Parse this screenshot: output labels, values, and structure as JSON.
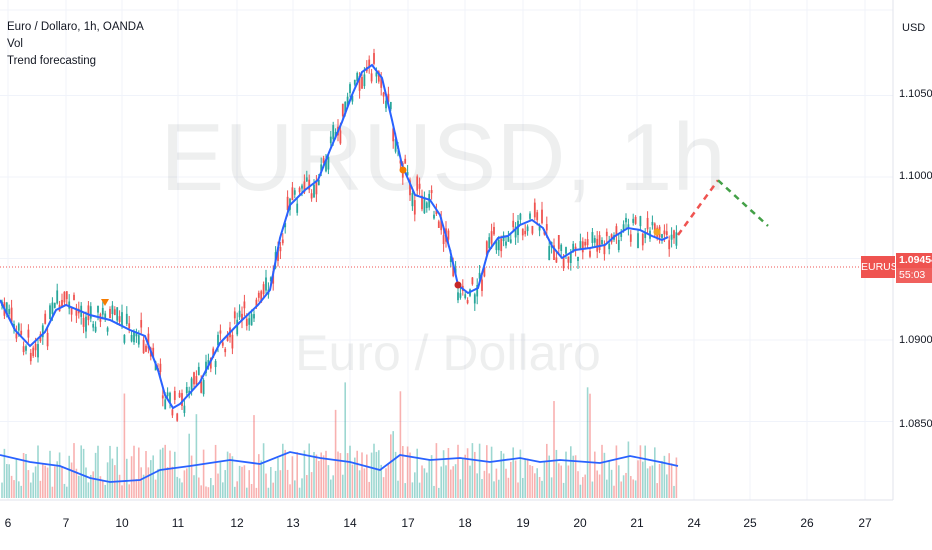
{
  "legend": {
    "title": "Euro / Dollaro, 1h, OANDA",
    "line2": "Vol",
    "line3": "Trend forecasting"
  },
  "watermark": {
    "symbol": "EURUSD, 1h",
    "name": "Euro / Dollaro"
  },
  "price_axis": {
    "currency": "USD",
    "labels": [
      "1.10500",
      "1.10000",
      "1.09000",
      "1.08500"
    ]
  },
  "last_price": {
    "symbol": "EURUSD",
    "price": "1.09454",
    "countdown": "55:03",
    "color": "#ef5350"
  },
  "colors": {
    "up": "#26a69a",
    "down": "#ef5350",
    "ma": "#2962ff",
    "forecast_up": "#ef5350",
    "forecast_down": "#43a047"
  },
  "chart_data": {
    "type": "line",
    "x_ticks": [
      "6",
      "7",
      "10",
      "11",
      "12",
      "13",
      "14",
      "17",
      "18",
      "19",
      "20",
      "21",
      "24",
      "25",
      "26",
      "27"
    ],
    "y_range": [
      1.083,
      1.11
    ],
    "last_price": 1.09454,
    "series": [
      {
        "x": [
          "6",
          "7",
          "10",
          "11",
          "12",
          "13",
          "14",
          "17",
          "18",
          "19",
          "20",
          "21"
        ],
        "values": [
          1.0905,
          1.0915,
          1.091,
          1.086,
          1.0915,
          1.0985,
          1.104,
          1.0985,
          1.092,
          1.0962,
          1.0948,
          1.0958
        ]
      },
      {
        "x": [
          "21",
          "24",
          "25"
        ],
        "values": [
          1.0962,
          1.0998,
          1.097
        ]
      }
    ]
  }
}
